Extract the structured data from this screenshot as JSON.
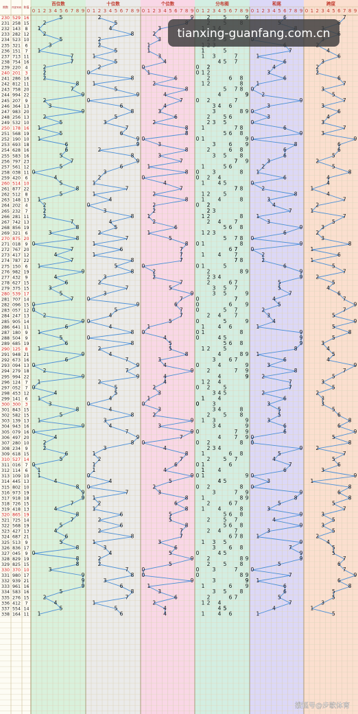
{
  "header": {
    "issue": "期数",
    "number": "开奖号码",
    "sum": "和值"
  },
  "panels": [
    "百位数",
    "十位数",
    "个位数",
    "分布图",
    "和尾",
    "跨度"
  ],
  "columns": [
    0,
    1,
    2,
    3,
    4,
    5,
    6,
    7,
    8,
    9
  ],
  "watermark": "tianxing-guanfang.com.cn",
  "source": "搜狐号@步歌体育",
  "rows": [
    [
      230,
      "529",
      16,
      5,
      2,
      9,
      6,
      7
    ],
    [
      231,
      "258",
      15,
      2,
      5,
      8,
      5,
      6
    ],
    [
      232,
      "143",
      8,
      1,
      4,
      3,
      8,
      3
    ],
    [
      233,
      "282",
      12,
      2,
      8,
      2,
      2,
      6
    ],
    [
      234,
      "523",
      10,
      5,
      2,
      3,
      0,
      3
    ],
    [
      235,
      "321",
      6,
      3,
      2,
      1,
      6,
      2
    ],
    [
      236,
      "151",
      7,
      1,
      5,
      1,
      7,
      4
    ],
    [
      237,
      "713",
      11,
      7,
      1,
      3,
      1,
      6
    ],
    [
      238,
      "754",
      16,
      7,
      5,
      4,
      6,
      3
    ],
    [
      239,
      "220",
      4,
      2,
      2,
      0,
      4,
      2
    ],
    [
      240,
      "201",
      3,
      2,
      0,
      1,
      3,
      2
    ],
    [
      241,
      "286",
      16,
      2,
      8,
      6,
      6,
      6
    ],
    [
      242,
      "812",
      11,
      8,
      1,
      2,
      1,
      7
    ],
    [
      243,
      "758",
      20,
      7,
      5,
      8,
      0,
      3
    ],
    [
      244,
      "994",
      22,
      9,
      9,
      4,
      2,
      5
    ],
    [
      245,
      "207",
      9,
      2,
      0,
      7,
      9,
      7
    ],
    [
      246,
      "364",
      13,
      3,
      6,
      4,
      3,
      3
    ],
    [
      247,
      "983",
      20,
      9,
      8,
      3,
      0,
      6
    ],
    [
      248,
      "256",
      13,
      2,
      5,
      6,
      3,
      4
    ],
    [
      249,
      "532",
      10,
      5,
      3,
      2,
      0,
      3
    ],
    [
      250,
      "178",
      16,
      1,
      7,
      8,
      6,
      7
    ],
    [
      251,
      "568",
      19,
      5,
      6,
      8,
      9,
      3
    ],
    [
      252,
      "190",
      10,
      1,
      9,
      0,
      0,
      9
    ],
    [
      253,
      "693",
      18,
      6,
      9,
      3,
      8,
      6
    ],
    [
      254,
      "628",
      16,
      6,
      2,
      8,
      6,
      6
    ],
    [
      255,
      "583",
      16,
      5,
      8,
      3,
      6,
      5
    ],
    [
      256,
      "797",
      23,
      7,
      9,
      7,
      3,
      2
    ],
    [
      257,
      "561",
      12,
      5,
      6,
      1,
      2,
      5
    ],
    [
      258,
      "038",
      11,
      0,
      3,
      8,
      1,
      8
    ],
    [
      259,
      "420",
      6,
      4,
      2,
      0,
      6,
      4
    ],
    [
      260,
      "514",
      10,
      5,
      1,
      4,
      0,
      4
    ],
    [
      261,
      "877",
      22,
      8,
      7,
      7,
      2,
      1
    ],
    [
      262,
      "512",
      8,
      5,
      1,
      2,
      8,
      4
    ],
    [
      263,
      "148",
      13,
      1,
      4,
      8,
      3,
      7
    ],
    [
      264,
      "202",
      4,
      2,
      0,
      2,
      4,
      2
    ],
    [
      265,
      "232",
      7,
      2,
      3,
      2,
      7,
      1
    ],
    [
      266,
      "281",
      11,
      2,
      8,
      1,
      1,
      7
    ],
    [
      267,
      "742",
      13,
      7,
      4,
      2,
      3,
      5
    ],
    [
      268,
      "856",
      19,
      8,
      5,
      6,
      9,
      3
    ],
    [
      269,
      "321",
      6,
      3,
      2,
      1,
      6,
      2
    ],
    [
      270,
      "875",
      20,
      8,
      7,
      5,
      0,
      3
    ],
    [
      271,
      "018",
      9,
      0,
      1,
      8,
      9,
      8
    ],
    [
      272,
      "767",
      20,
      7,
      6,
      7,
      0,
      1
    ],
    [
      273,
      "417",
      12,
      4,
      1,
      7,
      2,
      6
    ],
    [
      274,
      "787",
      22,
      7,
      8,
      7,
      2,
      1
    ],
    [
      275,
      "150",
      6,
      1,
      5,
      0,
      6,
      5
    ],
    [
      276,
      "982",
      19,
      9,
      8,
      2,
      9,
      7
    ],
    [
      277,
      "432",
      9,
      4,
      3,
      2,
      9,
      2
    ],
    [
      278,
      "627",
      15,
      6,
      2,
      7,
      5,
      5
    ],
    [
      279,
      "375",
      15,
      3,
      7,
      5,
      5,
      4
    ],
    [
      280,
      "539",
      17,
      5,
      3,
      9,
      7,
      6
    ],
    [
      281,
      "707",
      14,
      7,
      0,
      7,
      4,
      7
    ],
    [
      282,
      "096",
      15,
      0,
      9,
      6,
      5,
      9
    ],
    [
      283,
      "057",
      12,
      0,
      5,
      7,
      2,
      7
    ],
    [
      284,
      "247",
      13,
      2,
      4,
      7,
      3,
      5
    ],
    [
      285,
      "905",
      14,
      9,
      0,
      5,
      4,
      9
    ],
    [
      286,
      "641",
      11,
      6,
      4,
      1,
      1,
      5
    ],
    [
      287,
      "180",
      9,
      1,
      8,
      0,
      9,
      8
    ],
    [
      288,
      "504",
      9,
      5,
      0,
      4,
      9,
      5
    ],
    [
      289,
      "685",
      19,
      6,
      8,
      5,
      9,
      3
    ],
    [
      290,
      "125",
      8,
      1,
      2,
      5,
      8,
      4
    ],
    [
      291,
      "948",
      21,
      9,
      4,
      8,
      1,
      5
    ],
    [
      292,
      "673",
      16,
      6,
      7,
      3,
      6,
      4
    ],
    [
      293,
      "094",
      13,
      0,
      9,
      4,
      3,
      9
    ],
    [
      294,
      "279",
      18,
      2,
      7,
      9,
      8,
      7
    ],
    [
      295,
      "994",
      22,
      9,
      9,
      4,
      2,
      5
    ],
    [
      296,
      "124",
      7,
      1,
      2,
      4,
      7,
      3
    ],
    [
      297,
      "052",
      7,
      0,
      5,
      2,
      7,
      5
    ],
    [
      298,
      "453",
      12,
      4,
      5,
      3,
      2,
      2
    ],
    [
      299,
      "141",
      6,
      1,
      4,
      1,
      6,
      3
    ],
    [
      300,
      "300",
      3,
      3,
      0,
      0,
      3,
      3
    ],
    [
      301,
      "843",
      15,
      8,
      4,
      3,
      5,
      5
    ],
    [
      302,
      "582",
      15,
      5,
      8,
      2,
      5,
      6
    ],
    [
      303,
      "139",
      13,
      1,
      3,
      9,
      3,
      8
    ],
    [
      304,
      "943",
      16,
      9,
      4,
      3,
      6,
      6
    ],
    [
      305,
      "079",
      16,
      0,
      7,
      9,
      6,
      9
    ],
    [
      306,
      "497",
      20,
      4,
      9,
      7,
      0,
      5
    ],
    [
      307,
      "280",
      10,
      2,
      8,
      0,
      0,
      8
    ],
    [
      308,
      "234",
      9,
      2,
      3,
      4,
      9,
      2
    ],
    [
      309,
      "618",
      15,
      6,
      1,
      8,
      5,
      7
    ],
    [
      310,
      "527",
      14,
      5,
      2,
      7,
      4,
      5
    ],
    [
      311,
      "016",
      7,
      0,
      1,
      6,
      7,
      6
    ],
    [
      312,
      "114",
      6,
      1,
      1,
      4,
      6,
      3
    ],
    [
      313,
      "109",
      10,
      1,
      0,
      9,
      0,
      9
    ],
    [
      314,
      "445",
      13,
      4,
      4,
      5,
      3,
      1
    ],
    [
      315,
      "802",
      10,
      8,
      0,
      2,
      0,
      8
    ],
    [
      316,
      "973",
      19,
      9,
      7,
      3,
      9,
      6
    ],
    [
      317,
      "918",
      18,
      9,
      1,
      8,
      8,
      8
    ],
    [
      318,
      "726",
      15,
      7,
      2,
      6,
      5,
      5
    ],
    [
      319,
      "418",
      13,
      4,
      1,
      8,
      3,
      7
    ],
    [
      320,
      "865",
      19,
      8,
      6,
      5,
      9,
      3
    ],
    [
      321,
      "725",
      14,
      7,
      2,
      5,
      4,
      5
    ],
    [
      322,
      "568",
      19,
      5,
      6,
      8,
      9,
      3
    ],
    [
      323,
      "427",
      13,
      4,
      2,
      7,
      3,
      5
    ],
    [
      324,
      "687",
      21,
      6,
      8,
      7,
      1,
      2
    ],
    [
      325,
      "513",
      9,
      5,
      1,
      3,
      9,
      4
    ],
    [
      326,
      "836",
      17,
      8,
      3,
      6,
      7,
      5
    ],
    [
      327,
      "045",
      9,
      0,
      4,
      5,
      9,
      5
    ],
    [
      328,
      "829",
      19,
      8,
      2,
      9,
      9,
      7
    ],
    [
      329,
      "825",
      15,
      8,
      2,
      5,
      5,
      6
    ],
    [
      330,
      "370",
      10,
      3,
      7,
      0,
      0,
      7
    ],
    [
      331,
      "980",
      17,
      9,
      8,
      0,
      7,
      9
    ],
    [
      332,
      "939",
      21,
      9,
      3,
      9,
      1,
      6
    ],
    [
      333,
      "961",
      16,
      9,
      6,
      1,
      6,
      8
    ],
    [
      334,
      "583",
      16,
      5,
      8,
      3,
      6,
      5
    ],
    [
      335,
      "276",
      15,
      2,
      7,
      6,
      5,
      5
    ],
    [
      336,
      "412",
      7,
      4,
      1,
      2,
      7,
      3
    ],
    [
      337,
      "554",
      14,
      5,
      5,
      4,
      4,
      1
    ],
    [
      338,
      "164",
      11,
      1,
      6,
      4,
      1,
      5
    ]
  ]
}
